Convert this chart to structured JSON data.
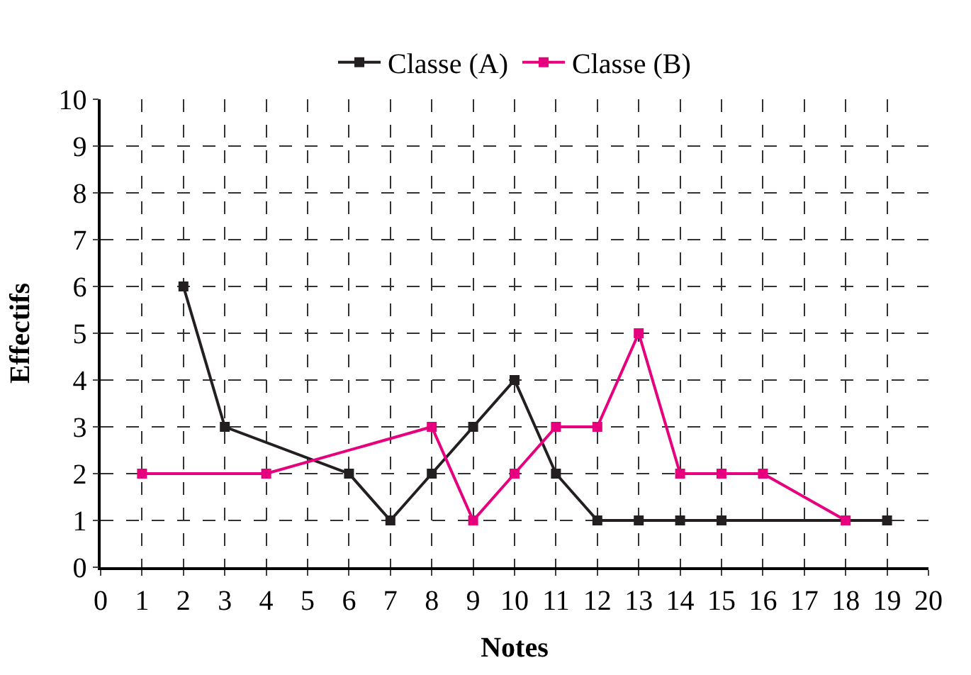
{
  "chart_data": {
    "type": "line",
    "xlabel": "Notes",
    "ylabel": "Effectifs",
    "xlim": [
      0,
      20
    ],
    "xticks": [
      0,
      1,
      2,
      3,
      4,
      5,
      6,
      7,
      8,
      9,
      10,
      11,
      12,
      13,
      14,
      15,
      16,
      17,
      18,
      19,
      20
    ],
    "ylim": [
      0,
      10
    ],
    "yticks": [
      0,
      1,
      2,
      3,
      4,
      5,
      6,
      7,
      8,
      9,
      10
    ],
    "grid": true,
    "legend": "top",
    "marker": "square",
    "line_style": "solid",
    "series": [
      {
        "name": "Classe (A)",
        "color": "#231f20",
        "x": [
          2,
          3,
          6,
          7,
          8,
          9,
          10,
          11,
          12,
          13,
          14,
          15,
          19
        ],
        "values": [
          6,
          3,
          2,
          1,
          2,
          3,
          4,
          2,
          1,
          1,
          1,
          1,
          1
        ]
      },
      {
        "name": "Classe (B)",
        "color": "#e6007e",
        "x": [
          1,
          4,
          8,
          9,
          10,
          11,
          12,
          13,
          14,
          15,
          16,
          18
        ],
        "values": [
          2,
          2,
          3,
          1,
          2,
          3,
          3,
          5,
          2,
          2,
          2,
          1
        ]
      }
    ]
  }
}
